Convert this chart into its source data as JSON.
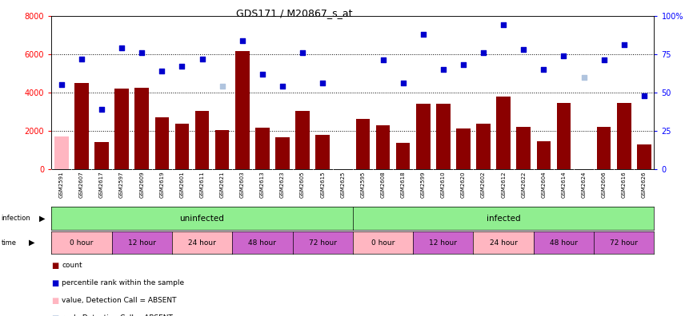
{
  "title": "GDS171 / M20867_s_at",
  "samples": [
    "GSM2591",
    "GSM2607",
    "GSM2617",
    "GSM2597",
    "GSM2609",
    "GSM2619",
    "GSM2601",
    "GSM2611",
    "GSM2621",
    "GSM2603",
    "GSM2613",
    "GSM2623",
    "GSM2605",
    "GSM2615",
    "GSM2625",
    "GSM2595",
    "GSM2608",
    "GSM2618",
    "GSM2599",
    "GSM2610",
    "GSM2620",
    "GSM2602",
    "GSM2612",
    "GSM2622",
    "GSM2604",
    "GSM2614",
    "GSM2624",
    "GSM2606",
    "GSM2616",
    "GSM2626"
  ],
  "counts": [
    1700,
    4500,
    1400,
    4200,
    4250,
    2700,
    2350,
    3050,
    2050,
    6150,
    2150,
    1650,
    3050,
    1800,
    0,
    2600,
    2300,
    1350,
    3400,
    3400,
    2100,
    2350,
    3800,
    2200,
    1450,
    3450,
    0,
    2200,
    3450,
    1300
  ],
  "counts_absent": [
    true,
    false,
    false,
    false,
    false,
    false,
    false,
    false,
    false,
    false,
    false,
    false,
    false,
    false,
    false,
    false,
    false,
    false,
    false,
    false,
    false,
    false,
    false,
    false,
    false,
    false,
    true,
    false,
    false,
    false
  ],
  "percentile_ranks_val": [
    55,
    72,
    39,
    79,
    76,
    64,
    67,
    72,
    54,
    84,
    62,
    54,
    76,
    56,
    0,
    0,
    71,
    56,
    88,
    65,
    68,
    76,
    94,
    78,
    65,
    74,
    60,
    71,
    81,
    48
  ],
  "ranks_absent": [
    false,
    false,
    false,
    false,
    false,
    false,
    false,
    false,
    true,
    false,
    false,
    false,
    false,
    false,
    false,
    false,
    false,
    false,
    false,
    false,
    false,
    false,
    false,
    false,
    false,
    false,
    true,
    false,
    false,
    false
  ],
  "no_rank": [
    false,
    false,
    false,
    false,
    false,
    false,
    false,
    false,
    false,
    false,
    false,
    false,
    false,
    false,
    true,
    true,
    false,
    false,
    false,
    false,
    false,
    false,
    false,
    false,
    false,
    false,
    false,
    false,
    false,
    false
  ],
  "ylim_left": [
    0,
    8000
  ],
  "ylim_right": [
    0,
    100
  ],
  "yticks_left": [
    0,
    2000,
    4000,
    6000,
    8000
  ],
  "yticks_right": [
    0,
    25,
    50,
    75,
    100
  ],
  "ytick_labels_right": [
    "0",
    "25",
    "50",
    "75",
    "100%"
  ],
  "bar_color": "#8B0000",
  "bar_absent_color": "#FFB6C1",
  "dot_color": "#0000CD",
  "dot_absent_color": "#B0C4DE",
  "bg_color": "#ffffff",
  "plot_bg": "#ffffff",
  "xlabel_bg": "#d4d4d4",
  "infection_colors": [
    "#90EE90",
    "#90EE90"
  ],
  "infection_labels": [
    "uninfected",
    "infected"
  ],
  "time_colors": [
    "#FFB6C1",
    "#CC66CC",
    "#FFB6C1",
    "#CC66CC",
    "#CC66CC",
    "#FFB6C1",
    "#CC66CC",
    "#FFB6C1",
    "#CC66CC",
    "#CC66CC"
  ],
  "time_labels": [
    "0 hour",
    "12 hour",
    "24 hour",
    "48 hour",
    "72 hour",
    "0 hour",
    "12 hour",
    "24 hour",
    "48 hour",
    "72 hour"
  ]
}
